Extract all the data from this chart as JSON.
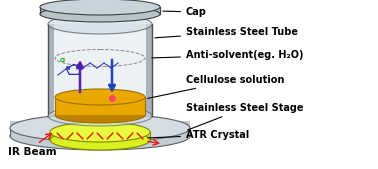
{
  "bg_color": "#ffffff",
  "labels": {
    "cap": "Cap",
    "tube": "Stainless Steel Tube",
    "antisolvent": "Anti-solvent(eg. H₂O)",
    "cellulose": "Cellulose solution",
    "stage": "Stainless Steel Stage",
    "atr": "ATR Crystal",
    "ir": "IR Beam"
  },
  "colors": {
    "tube_fill": "#d0dde8",
    "tube_edge": "#505050",
    "tube_wall": "#a0aab4",
    "cap_fill": "#b8c4cc",
    "cap_edge": "#404040",
    "cap_top": "#c8d4dc",
    "cellulose_fill": "#e8a800",
    "cellulose_edge": "#a07000",
    "cellulose_bottom": "#c08000",
    "stage_fill": "#c4ccd4",
    "stage_top": "#d4dce4",
    "stage_edge": "#606060",
    "atr_fill": "#d8f020",
    "atr_top": "#e8ff40",
    "atr_edge": "#808800",
    "ir_beam": "#ee1111",
    "arrow_down": "#2244bb",
    "arrow_up": "#5522aa",
    "dot_color": "#ff4466",
    "label_color": "#000000",
    "line_color": "#000000"
  },
  "figsize": [
    3.78,
    1.69
  ],
  "dpi": 100
}
